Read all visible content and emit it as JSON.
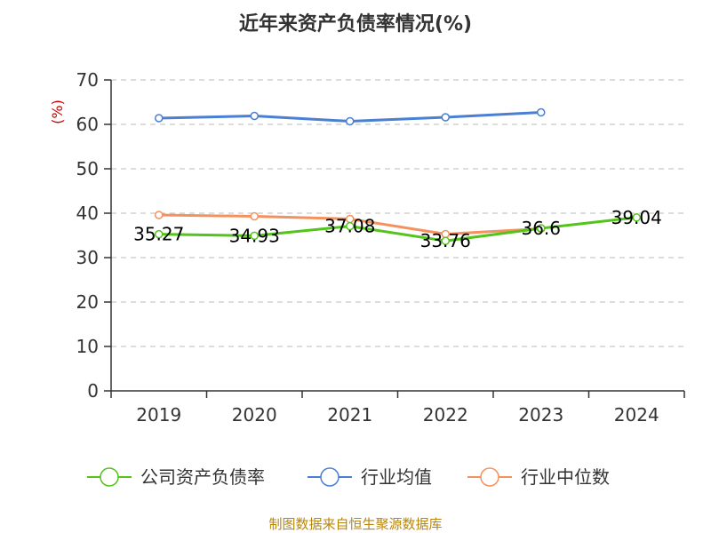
{
  "chart_data": {
    "type": "line",
    "title": "近年来资产负债率情况(%)",
    "ylabel": "(%)",
    "xlabel": "",
    "categories": [
      "2019",
      "2020",
      "2021",
      "2022",
      "2023",
      "2024"
    ],
    "ylim": [
      0,
      70
    ],
    "yticks": [
      "0",
      "10",
      "20",
      "30",
      "40",
      "50",
      "60",
      "70"
    ],
    "grid": true,
    "legend_position": "bottom",
    "series": [
      {
        "name": "公司资产负债率",
        "color": "#52c41a",
        "values": [
          35.27,
          34.93,
          37.08,
          33.76,
          36.6,
          39.04
        ],
        "labels": [
          "35.27",
          "34.93",
          "37.08",
          "33.76",
          "36.6",
          "39.04"
        ]
      },
      {
        "name": "行业均值",
        "color": "#4a7fd4",
        "values": [
          61.4,
          61.9,
          60.7,
          61.6,
          62.7,
          null
        ]
      },
      {
        "name": "行业中位数",
        "color": "#f4925e",
        "values": [
          39.6,
          39.3,
          38.7,
          35.3,
          36.5,
          null
        ]
      }
    ]
  },
  "source": "制图数据来自恒生聚源数据库"
}
